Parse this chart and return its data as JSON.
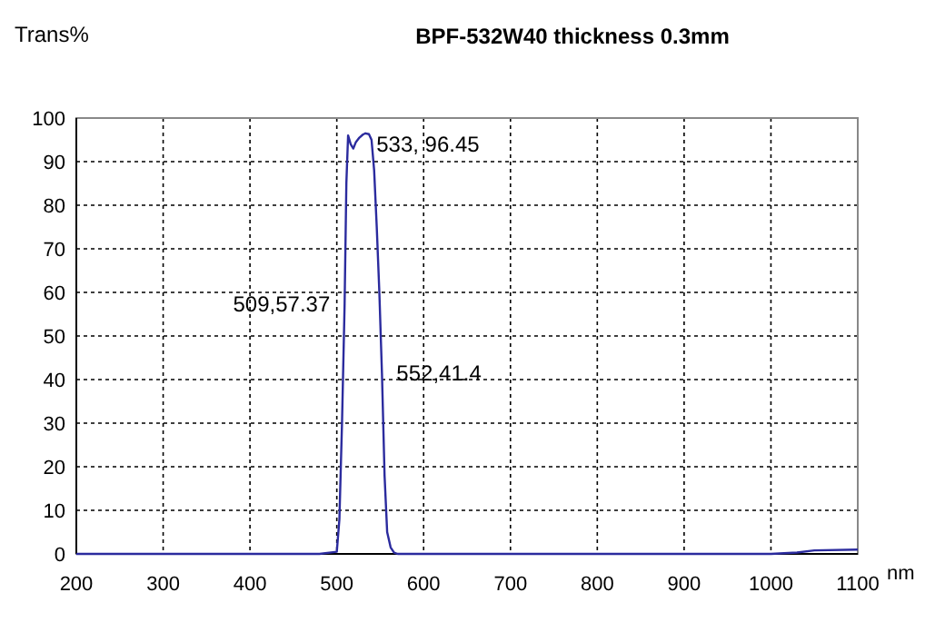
{
  "chart_data": {
    "type": "line",
    "title": "BPF-532W40 thickness 0.3mm",
    "ylabel": "Trans%",
    "xlabel": "nm",
    "x": [
      200,
      300,
      400,
      450,
      480,
      500,
      503,
      506,
      509,
      511,
      513,
      516,
      519,
      522,
      526,
      530,
      533,
      537,
      540,
      543,
      546,
      549,
      552,
      555,
      558,
      562,
      566,
      570,
      600,
      700,
      800,
      900,
      1000,
      1030,
      1050,
      1100
    ],
    "series": [
      {
        "color": "#2b2b9e",
        "values": [
          0,
          0,
          0,
          0,
          0,
          0.5,
          8,
          30,
          57.4,
          85,
          96,
          94,
          93,
          94.5,
          95.5,
          96.2,
          96.5,
          96.3,
          95,
          88,
          75,
          60,
          41.4,
          18,
          5,
          1.5,
          0.3,
          0,
          0,
          0,
          0,
          0,
          0,
          0.3,
          0.8,
          1
        ]
      }
    ],
    "xlim": [
      200,
      1100
    ],
    "ylim": [
      0,
      100
    ],
    "xticks": [
      200,
      300,
      400,
      500,
      600,
      700,
      800,
      900,
      1000,
      1100
    ],
    "yticks": [
      0,
      10,
      20,
      30,
      40,
      50,
      60,
      70,
      80,
      90,
      100
    ],
    "grid": true,
    "marker": "none",
    "line_style": "solid",
    "annotations": [
      {
        "text": "533, 96.45",
        "x": 533,
        "y": 96.45
      },
      {
        "text": "509,57.37",
        "x": 509,
        "y": 57.37
      },
      {
        "text": "552,41.4",
        "x": 552,
        "y": 41.4
      }
    ]
  }
}
